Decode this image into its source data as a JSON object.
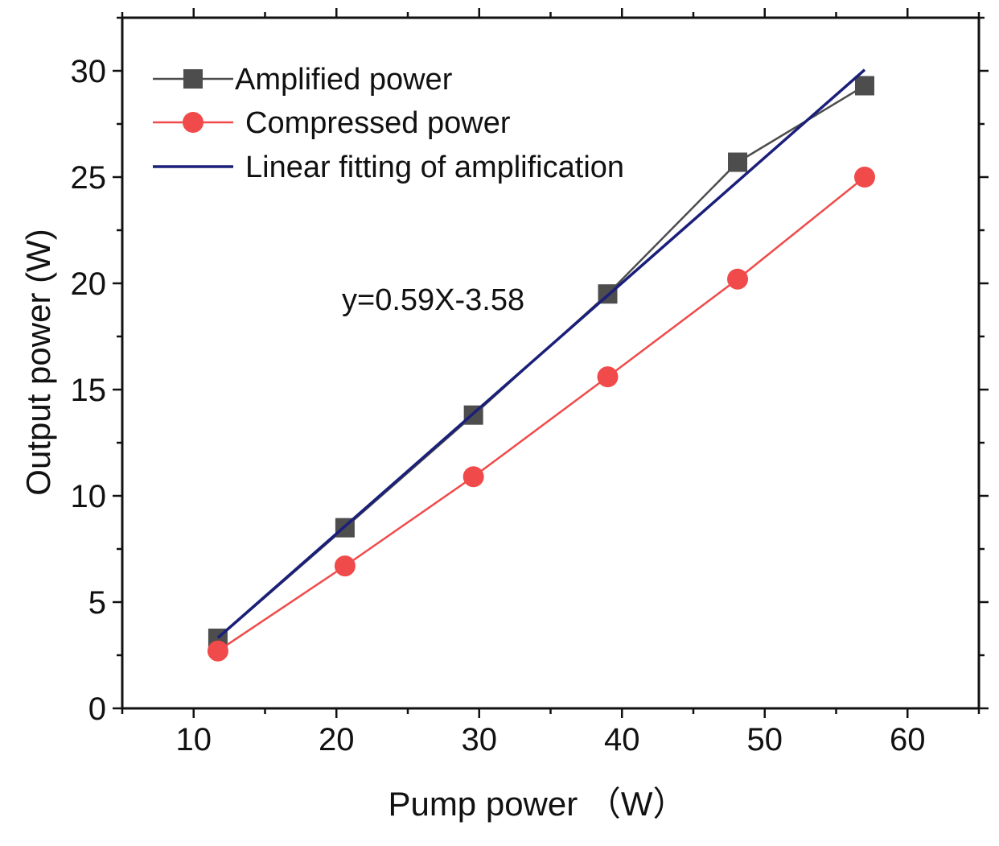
{
  "chart_data": {
    "type": "line",
    "title": "",
    "xlabel": "Pump power （W）",
    "ylabel": "Output power (W)",
    "xlim": [
      5,
      65
    ],
    "ylim": [
      0,
      32.5
    ],
    "xticks": [
      10,
      20,
      30,
      40,
      50,
      60
    ],
    "yticks": [
      0,
      5,
      10,
      15,
      20,
      25,
      30
    ],
    "legend_position": "top-left",
    "annotation": "y=0.59X-3.58",
    "series": [
      {
        "name": "Amplified power",
        "color": "#4d4d4d",
        "marker": "square",
        "x": [
          11.7,
          20.6,
          29.6,
          39.0,
          48.1,
          57.0
        ],
        "y": [
          3.3,
          8.5,
          13.8,
          19.5,
          25.7,
          29.3
        ]
      },
      {
        "name": "Compressed power",
        "color": "#f04a4a",
        "marker": "circle",
        "x": [
          11.7,
          20.6,
          29.6,
          39.0,
          48.1,
          57.0
        ],
        "y": [
          2.7,
          6.7,
          10.9,
          15.6,
          20.2,
          25.0
        ]
      },
      {
        "name": "Linear fitting of amplification",
        "color": "#1a1f7a",
        "marker": "none",
        "x": [
          11.7,
          57.0
        ],
        "y": [
          3.32,
          30.05
        ]
      }
    ]
  }
}
